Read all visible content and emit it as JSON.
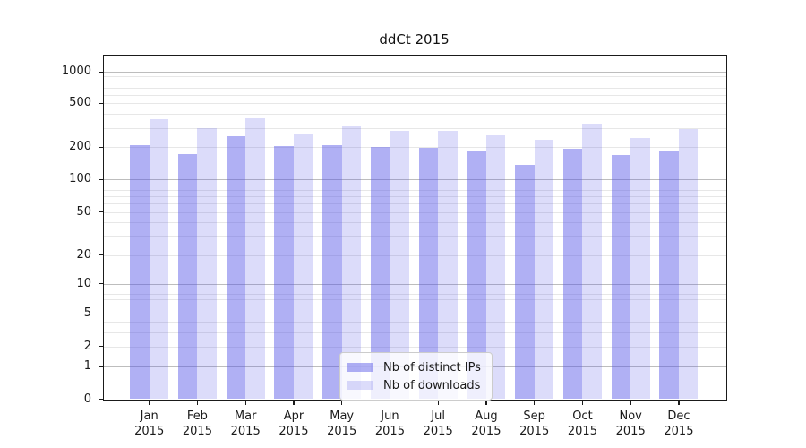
{
  "title": "ddCt 2015",
  "chart_data": {
    "type": "bar",
    "title": "ddCt 2015",
    "categories": [
      "Jan 2015",
      "Feb 2015",
      "Mar 2015",
      "Apr 2015",
      "May 2015",
      "Jun 2015",
      "Jul 2015",
      "Aug 2015",
      "Sep 2015",
      "Oct 2015",
      "Nov 2015",
      "Dec 2015"
    ],
    "series": [
      {
        "name": "Nb of distinct IPs",
        "color": "rgba(80,80,230,0.45)",
        "color_hex_on_white": "#abacf2",
        "values": [
          210,
          172,
          250,
          204,
          207,
          200,
          196,
          186,
          136,
          194,
          168,
          182
        ]
      },
      {
        "name": "Nb of downloads",
        "color": "rgba(80,80,230,0.20)",
        "color_hex_on_white": "#dcdcf8",
        "values": [
          358,
          300,
          365,
          268,
          308,
          283,
          283,
          258,
          235,
          327,
          243,
          290
        ]
      }
    ],
    "xlabel": "",
    "ylabel": "",
    "yscale": "symlog",
    "yticks": [
      0,
      1,
      2,
      5,
      10,
      20,
      50,
      100,
      200,
      500,
      1000
    ],
    "ylim": [
      0,
      1400
    ],
    "grid": true,
    "legend_position": "lower center"
  }
}
